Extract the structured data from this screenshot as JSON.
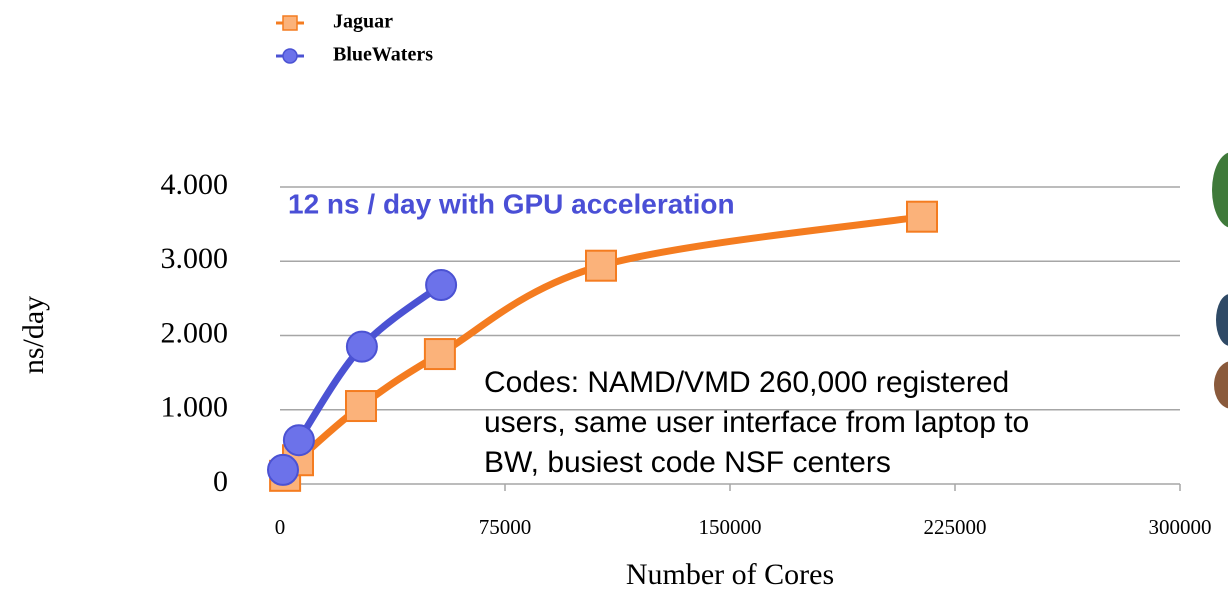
{
  "chart_data": {
    "type": "line",
    "x_label": "Number of Cores",
    "y_label": "ns/day",
    "annotations": [
      "12 ns / day with GPU acceleration"
    ],
    "note": [
      "Codes: NAMD/VMD 260,000 registered",
      "users, same user interface from laptop to",
      "BW, busiest code NSF centers"
    ],
    "xlim": [
      0,
      300000
    ],
    "xticks": [
      0,
      75000,
      150000,
      225000,
      300000
    ],
    "ylim": [
      0,
      4
    ],
    "yticks": [
      0,
      {
        "value": 1,
        "label": "1.000"
      },
      {
        "value": 2,
        "label": "2.000"
      },
      {
        "value": 3,
        "label": "3.000"
      },
      {
        "value": 4,
        "label": "4.000"
      }
    ],
    "grid": true,
    "series": [
      {
        "name": "Jaguar",
        "color": "#f47c20",
        "marker_fill": "#fbb27a",
        "marker": "square",
        "x": [
          1700,
          6000,
          27000,
          53300,
          107000,
          214000
        ],
        "values": [
          0.11,
          0.32,
          1.05,
          1.75,
          2.94,
          3.6
        ]
      },
      {
        "name": "BlueWaters",
        "color": "#4b52d3",
        "marker_fill": "#6c72ea",
        "marker": "circle",
        "x": [
          1000,
          6300,
          27300,
          53700
        ],
        "values": [
          0.19,
          0.59,
          1.85,
          2.68
        ]
      }
    ]
  }
}
